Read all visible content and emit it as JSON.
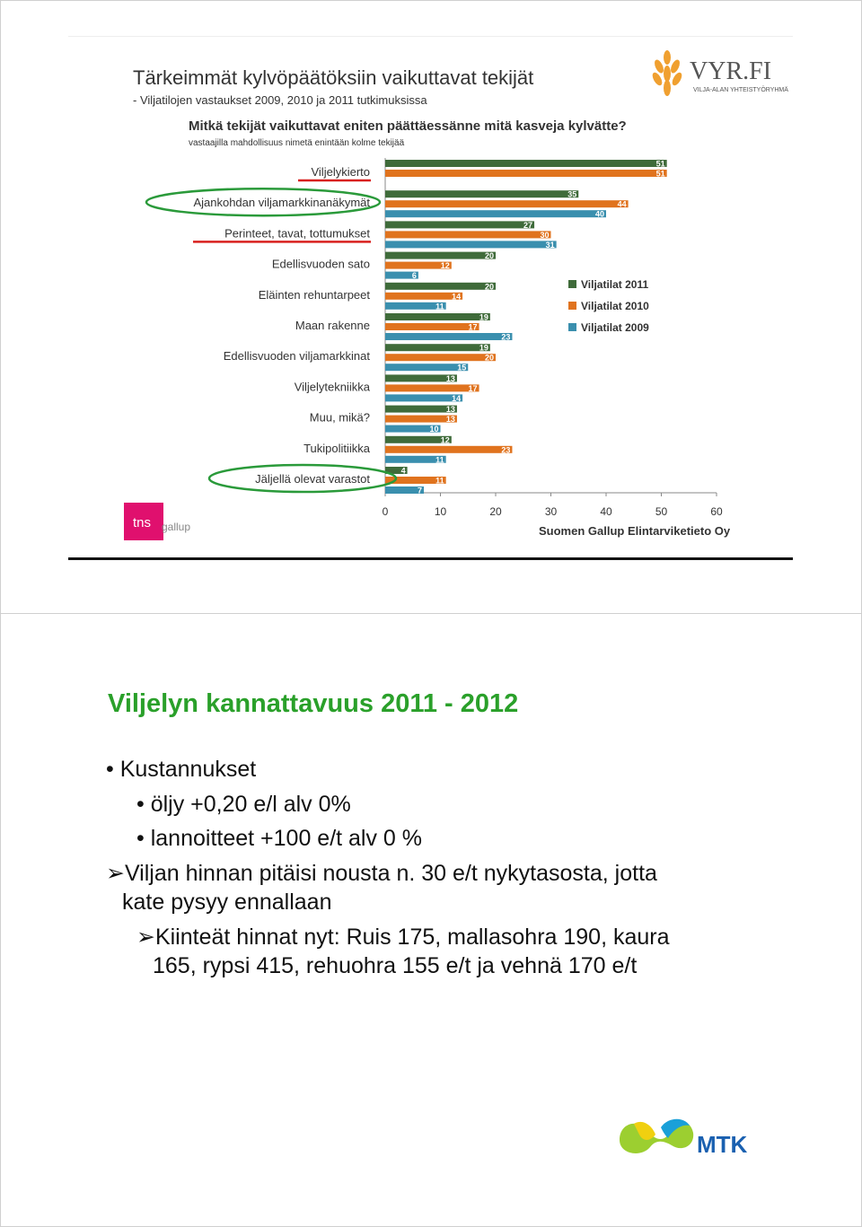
{
  "slide1": {
    "title": "Tärkeimmät kylvöpäätöksiin vaikuttavat tekijät",
    "subtitle": "- Viljatilojen vastaukset 2009, 2010 ja 2011 tutkimuksissa",
    "question": "Mitkä tekijät vaikuttavat eniten päättäessänne mitä kasveja kylvätte?",
    "question_note": "vastaajilla mahdollisuus nimetä enintään kolme tekijää",
    "logo_text": "VYR.FI",
    "logo_subtext": "VILJA-ALAN YHTEISTYÖRYHMÄ",
    "tns_text": "tns",
    "gallup_text": "gallup",
    "source": "Suomen Gallup Elintarviketieto Oy",
    "colors": {
      "y2011": "#3f6b3a",
      "y2010": "#e0731e",
      "y2009": "#3a8fae",
      "underline": "#d8201e",
      "circle": "#2a9a3a"
    }
  },
  "chart_data": {
    "type": "bar",
    "orientation": "horizontal",
    "categories": [
      "Viljelykierto",
      "Ajankohdan viljamarkkinanäkymät",
      "Perinteet, tavat, tottumukset",
      "Edellisvuoden sato",
      "Eläinten rehuntarpeet",
      "Maan rakenne",
      "Edellisvuoden viljamarkkinat",
      "Viljelytekniikka",
      "Muu, mikä?",
      "Tukipolitiikka",
      "Jäljellä olevat varastot"
    ],
    "series": [
      {
        "name": "Viljatilat 2011",
        "values": [
          51,
          35,
          27,
          20,
          20,
          19,
          19,
          13,
          13,
          12,
          4
        ]
      },
      {
        "name": "Viljatilat 2010",
        "values": [
          51,
          44,
          30,
          12,
          14,
          17,
          20,
          17,
          13,
          23,
          11
        ]
      },
      {
        "name": "Viljatilat 2009",
        "values": [
          null,
          40,
          31,
          6,
          11,
          23,
          15,
          14,
          10,
          11,
          7
        ]
      }
    ],
    "xlim": [
      0,
      60
    ],
    "xticks": [
      "0",
      "10",
      "20",
      "30",
      "40",
      "50",
      "60"
    ],
    "legend": "right"
  },
  "slide2": {
    "title": "Viljelyn kannattavuus 2011 - 2012",
    "b1": "Kustannukset",
    "b1a": "öljy +0,20 e/l alv 0%",
    "b1b": "lannoitteet +100 e/t alv 0 %",
    "b2_line1": "Viljan hinnan pitäisi nousta n. 30 e/t nykytasosta, jotta",
    "b2_line2": "kate pysyy ennallaan",
    "b3_line1": "Kiinteät hinnat nyt: Ruis 175, mallasohra 190, kaura",
    "b3_line2": "165, rypsi 415, rehuohra 155 e/t ja vehnä 170 e/t",
    "bullet": "•",
    "arrow": "➢",
    "logo_text": "MTK"
  }
}
